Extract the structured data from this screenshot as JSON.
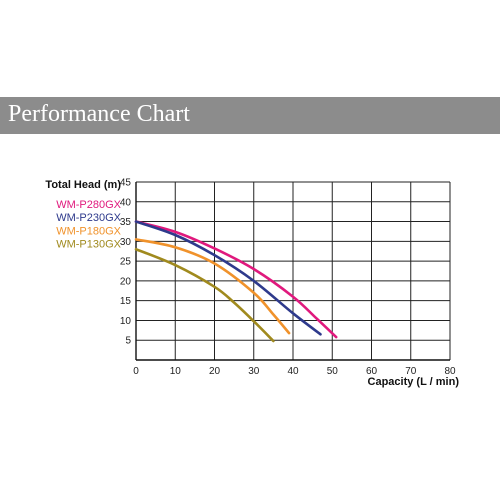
{
  "header": {
    "title": "Performance Chart"
  },
  "chart_data": {
    "type": "line",
    "ylabel": "Total Head (m)",
    "xlabel": "Capacity (L / min)",
    "xlim": [
      0,
      80
    ],
    "ylim": [
      0,
      45
    ],
    "x_ticks": [
      0,
      10,
      20,
      30,
      40,
      50,
      60,
      70,
      80
    ],
    "y_ticks": [
      5,
      10,
      15,
      20,
      25,
      30,
      35,
      40,
      45
    ],
    "grid": true,
    "legend_position": "left",
    "series": [
      {
        "name": "WM-P280GX",
        "color": "#e0197d",
        "points": [
          [
            0,
            35
          ],
          [
            10,
            32.4
          ],
          [
            20,
            28.2
          ],
          [
            30,
            23
          ],
          [
            40,
            16
          ],
          [
            46,
            10.5
          ],
          [
            51,
            5.8
          ]
        ]
      },
      {
        "name": "WM-P230GX",
        "color": "#2e3a8c",
        "points": [
          [
            0,
            35
          ],
          [
            10,
            31.6
          ],
          [
            20,
            26.5
          ],
          [
            30,
            20
          ],
          [
            40,
            11.8
          ],
          [
            47,
            6.5
          ]
        ]
      },
      {
        "name": "WM-P180GX",
        "color": "#f0922b",
        "points": [
          [
            0,
            30.5
          ],
          [
            10,
            28.5
          ],
          [
            20,
            24.4
          ],
          [
            30,
            17
          ],
          [
            35,
            11.5
          ],
          [
            39,
            6.8
          ]
        ]
      },
      {
        "name": "WM-P130GX",
        "color": "#a08a1e",
        "points": [
          [
            0,
            28
          ],
          [
            10,
            24
          ],
          [
            20,
            18.5
          ],
          [
            25,
            14.5
          ],
          [
            30,
            9.8
          ],
          [
            35,
            4.8
          ]
        ]
      }
    ]
  }
}
